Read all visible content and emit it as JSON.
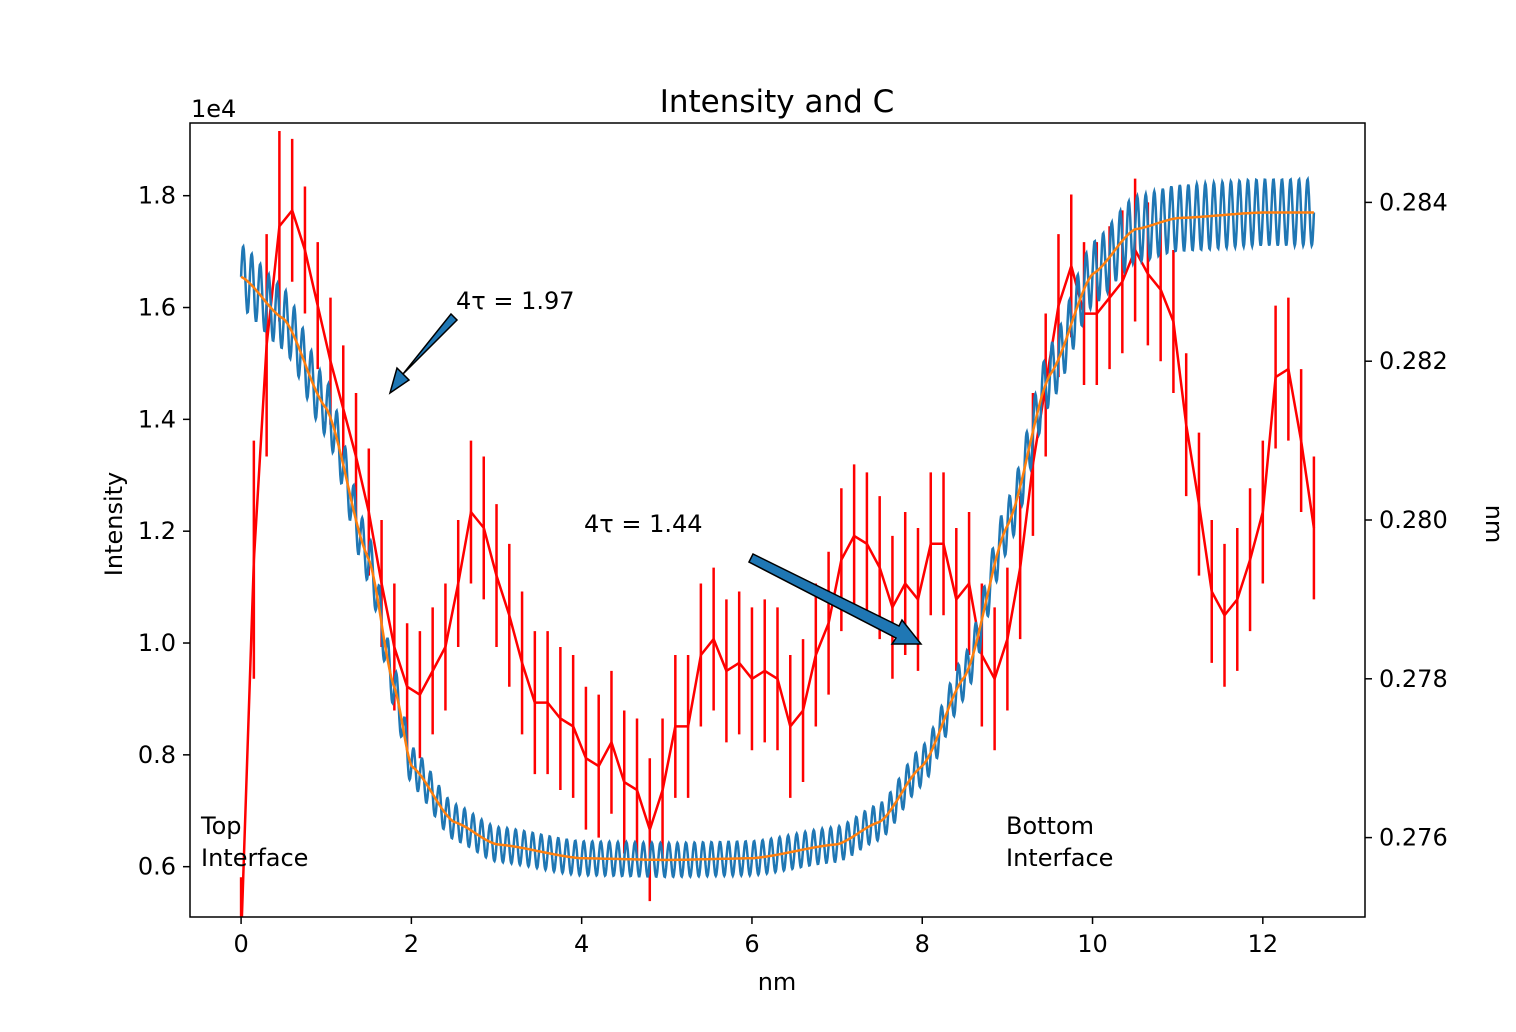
{
  "chart_data": {
    "type": "line",
    "title": "Intensity and C",
    "xlabel": "nm",
    "ylabel": "Intensity",
    "ylabel_right": "nm",
    "offset_text": "1e4",
    "xlim": [
      -0.6,
      13.2
    ],
    "ylim": [
      0.51,
      1.93
    ],
    "ylim_right": [
      0.275,
      0.285
    ],
    "x_ticks": [
      0,
      2,
      4,
      6,
      8,
      10,
      12
    ],
    "x_tick_labels": [
      "0",
      "2",
      "4",
      "6",
      "8",
      "10",
      "12"
    ],
    "y_ticks": [
      0.6,
      0.8,
      1.0,
      1.2,
      1.4,
      1.6,
      1.8
    ],
    "y_tick_labels": [
      "0.6",
      "0.8",
      "1.0",
      "1.2",
      "1.4",
      "1.6",
      "1.8"
    ],
    "y_ticks_right": [
      0.276,
      0.278,
      0.28,
      0.282,
      0.284
    ],
    "y_tick_labels_right": [
      "0.276",
      "0.278",
      "0.280",
      "0.282",
      "0.284"
    ],
    "series_intensity_fit": {
      "color": "#ff7f0e",
      "x": [
        0,
        0.5,
        1.0,
        1.5,
        1.8,
        2.0,
        2.5,
        3.0,
        4.0,
        5.0,
        6.0,
        7.0,
        7.5,
        8.0,
        8.5,
        9.0,
        9.5,
        10.0,
        10.5,
        11.0,
        12.0,
        12.6
      ],
      "y": [
        1.655,
        1.58,
        1.42,
        1.15,
        0.92,
        0.78,
        0.68,
        0.64,
        0.615,
        0.612,
        0.615,
        0.64,
        0.68,
        0.78,
        0.94,
        1.21,
        1.48,
        1.66,
        1.74,
        1.76,
        1.77,
        1.77
      ]
    },
    "series_intensity_oscillating": {
      "color": "#1f77b4",
      "oscillation_amplitude": [
        0.03,
        0.045,
        0.06
      ],
      "oscillation_period": 0.1
    },
    "series_c": {
      "color": "#ff0000",
      "axis": "right",
      "x": [
        0.0,
        0.15,
        0.3,
        0.45,
        0.6,
        0.75,
        0.9,
        1.05,
        1.2,
        1.35,
        1.5,
        1.65,
        1.8,
        1.95,
        2.1,
        2.25,
        2.4,
        2.55,
        2.7,
        2.85,
        3.0,
        3.15,
        3.3,
        3.45,
        3.6,
        3.75,
        3.9,
        4.05,
        4.2,
        4.35,
        4.5,
        4.65,
        4.8,
        4.95,
        5.1,
        5.25,
        5.4,
        5.55,
        5.7,
        5.85,
        6.0,
        6.15,
        6.3,
        6.45,
        6.6,
        6.75,
        6.9,
        7.05,
        7.2,
        7.35,
        7.5,
        7.65,
        7.8,
        7.95,
        8.1,
        8.25,
        8.4,
        8.55,
        8.7,
        8.85,
        9.0,
        9.15,
        9.3,
        9.45,
        9.6,
        9.75,
        9.9,
        10.05,
        10.2,
        10.35,
        10.5,
        10.65,
        10.8,
        10.95,
        11.1,
        11.25,
        11.4,
        11.55,
        11.7,
        11.85,
        12.0,
        12.15,
        12.3,
        12.45,
        12.6
      ],
      "y": [
        0.2747,
        0.2795,
        0.2822,
        0.2837,
        0.2839,
        0.2834,
        0.2827,
        0.282,
        0.2814,
        0.2808,
        0.2801,
        0.2792,
        0.2784,
        0.2779,
        0.2778,
        0.2781,
        0.2784,
        0.2792,
        0.2801,
        0.2799,
        0.2793,
        0.2788,
        0.2782,
        0.2777,
        0.2777,
        0.2775,
        0.2774,
        0.277,
        0.2769,
        0.2772,
        0.2767,
        0.2766,
        0.2761,
        0.2766,
        0.2774,
        0.2774,
        0.2783,
        0.2785,
        0.2781,
        0.2782,
        0.278,
        0.2781,
        0.278,
        0.2774,
        0.2776,
        0.2783,
        0.2787,
        0.2795,
        0.2798,
        0.2797,
        0.2794,
        0.2789,
        0.2792,
        0.279,
        0.2797,
        0.2797,
        0.279,
        0.2792,
        0.2783,
        0.278,
        0.2785,
        0.2794,
        0.2807,
        0.2817,
        0.2827,
        0.2832,
        0.2826,
        0.2826,
        0.2828,
        0.283,
        0.2834,
        0.2831,
        0.2829,
        0.2825,
        0.2812,
        0.2802,
        0.2791,
        0.2788,
        0.279,
        0.2795,
        0.2801,
        0.2818,
        0.2819,
        0.281,
        0.2799
      ],
      "err": [
        0.0008,
        0.0015,
        0.0014,
        0.0012,
        0.0009,
        0.0008,
        0.0008,
        0.0008,
        0.0008,
        0.0008,
        0.0008,
        0.0008,
        0.0008,
        0.0008,
        0.0008,
        0.0008,
        0.0008,
        0.0008,
        0.0009,
        0.0009,
        0.0009,
        0.0009,
        0.0009,
        0.0009,
        0.0009,
        0.0009,
        0.0009,
        0.0009,
        0.0009,
        0.0009,
        0.0009,
        0.0009,
        0.0009,
        0.0009,
        0.0009,
        0.0009,
        0.0009,
        0.0009,
        0.0009,
        0.0009,
        0.0009,
        0.0009,
        0.0009,
        0.0009,
        0.0009,
        0.0009,
        0.0009,
        0.0009,
        0.0009,
        0.0009,
        0.0009,
        0.0009,
        0.0009,
        0.0009,
        0.0009,
        0.0009,
        0.0009,
        0.0009,
        0.0009,
        0.0009,
        0.0009,
        0.0009,
        0.0009,
        0.0009,
        0.0009,
        0.0009,
        0.0009,
        0.0009,
        0.0009,
        0.0009,
        0.0009,
        0.0009,
        0.0009,
        0.0009,
        0.0009,
        0.0009,
        0.0009,
        0.0009,
        0.0009,
        0.0009,
        0.0009,
        0.0009,
        0.0009,
        0.0009,
        0.0009
      ]
    },
    "annotations": [
      {
        "text": "4τ = 1.97",
        "x": 2.5,
        "y": 1.6,
        "arrow_to": [
          1.75,
          1.45
        ]
      },
      {
        "text": "4τ = 1.44",
        "x": 4.0,
        "y": 1.2,
        "arrow_from": [
          6.0,
          1.15
        ],
        "arrow_to": [
          8.0,
          1.0
        ]
      },
      {
        "text_lines": [
          "Top",
          "Interface"
        ],
        "x": -0.48,
        "y": 0.6
      },
      {
        "text_lines": [
          "Bottom",
          "Interface"
        ],
        "x": 9.0,
        "y": 0.6
      }
    ],
    "grid": false,
    "legend": "none"
  }
}
